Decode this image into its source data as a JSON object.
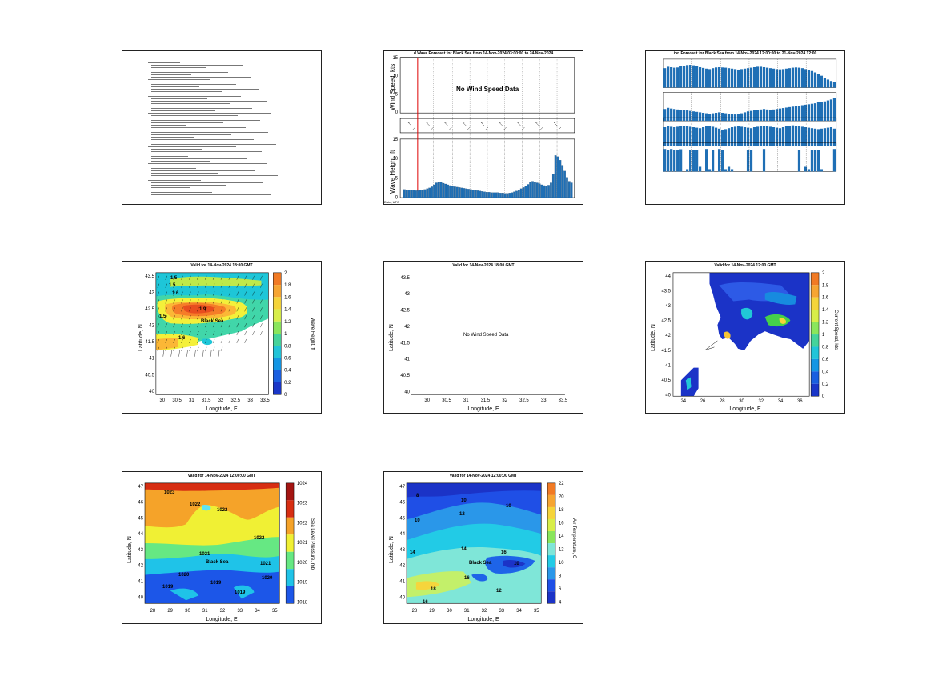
{
  "panels": {
    "text_report": {
      "lines": 56
    },
    "wind_wave": {
      "title": "d Wave Forecast for Black Sea from 14-Nov-2024 03:00:00 to 24-Nov-2024",
      "wind_ylabel": "Wind Speed, kts",
      "wave_ylabel": "Wave Height, ft",
      "nodata": "No Wind Speed Data",
      "wind_ticks": [
        "15",
        "10",
        "5",
        "0"
      ],
      "wave_ticks": [
        "15",
        "10",
        "5",
        "0"
      ],
      "bottom_left": "Date, UTC"
    },
    "multi_forecast": {
      "title": "ion Forecast for Black Sea from 14-Nov-2024 12:00:00 to 21-Nov-2024 12:00"
    },
    "wave_map": {
      "title": "Valid for 14-Nov-2024 18:00 GMT",
      "xlabel": "Longitude, E",
      "ylabel": "Latitude, N",
      "colorbar_label": "Wave Height, ft",
      "sea_label": "Black Sea",
      "xticks": [
        "30",
        "30.5",
        "31",
        "31.5",
        "32",
        "32.5",
        "33",
        "33.5"
      ],
      "yticks": [
        "43.5",
        "43",
        "42.5",
        "42",
        "41.5",
        "41",
        "40.5",
        "40"
      ],
      "cbar_ticks": [
        "2",
        "1.8",
        "1.6",
        "1.4",
        "1.2",
        "1",
        "0.8",
        "0.6",
        "0.4",
        "0.2",
        "0"
      ],
      "contour_labels": [
        "1.5",
        "1.5",
        "1.6",
        "1.9",
        "1.5",
        "1.6"
      ]
    },
    "wind_map": {
      "title": "Valid for 14-Nov-2024 18:00 GMT",
      "xlabel": "Longitude, E",
      "ylabel": "Latitude, N",
      "nodata": "No Wind Speed Data",
      "xticks": [
        "30",
        "30.5",
        "31",
        "31.5",
        "32",
        "32.5",
        "33",
        "33.5"
      ],
      "yticks": [
        "43.5",
        "43",
        "42.5",
        "42",
        "41.5",
        "41",
        "40.5",
        "40"
      ]
    },
    "current_map": {
      "title": "Valid for 14-Nov-2024 12:00 GMT",
      "xlabel": "Longitude, E",
      "ylabel": "Latitude, N",
      "colorbar_label": "Current Speed, kts",
      "xticks": [
        "24",
        "26",
        "28",
        "30",
        "32",
        "34",
        "36"
      ],
      "yticks": [
        "44",
        "43.5",
        "43",
        "42.5",
        "42",
        "41.5",
        "41",
        "40.5",
        "40"
      ],
      "cbar_ticks": [
        "2",
        "1.8",
        "1.6",
        "1.4",
        "1.2",
        "1",
        "0.8",
        "0.6",
        "0.4",
        "0.2",
        "0"
      ]
    },
    "pressure_map": {
      "title": "Valid for 14-Nov-2024 12:00:00 GMT",
      "xlabel": "Longitude, E",
      "ylabel": "Latitude, N",
      "colorbar_label": "Sea Level Pressure, mb",
      "sea_label": "Black Sea",
      "xticks": [
        "28",
        "29",
        "30",
        "31",
        "32",
        "33",
        "34",
        "35"
      ],
      "yticks": [
        "47",
        "46",
        "45",
        "44",
        "43",
        "42",
        "41",
        "40"
      ],
      "cbar_ticks": [
        "1024",
        "1023",
        "1022",
        "1021",
        "1020",
        "1019",
        "1018"
      ],
      "contour_labels": [
        "1023",
        "1022",
        "1022",
        "1022",
        "1021",
        "1021",
        "1020",
        "1020",
        "1019",
        "1019",
        "1019"
      ]
    },
    "temp_map": {
      "title": "Valid for 14-Nov-2024 12:00:00 GMT",
      "xlabel": "Longitude, E",
      "ylabel": "Latitude, N",
      "colorbar_label": "Air Temperature, C",
      "sea_label": "Black Sea",
      "xticks": [
        "28",
        "29",
        "30",
        "31",
        "32",
        "33",
        "34",
        "35"
      ],
      "yticks": [
        "47",
        "46",
        "45",
        "44",
        "43",
        "42",
        "41",
        "40"
      ],
      "cbar_ticks": [
        "22",
        "20",
        "18",
        "16",
        "14",
        "12",
        "10",
        "8",
        "6",
        "4"
      ],
      "contour_labels": [
        "8",
        "10",
        "10",
        "10",
        "12",
        "14",
        "14",
        "16",
        "16",
        "18",
        "10",
        "12",
        "16"
      ]
    }
  },
  "chart_data": [
    {
      "type": "bar",
      "title": "d Wave Forecast for Black Sea from 14-Nov-2024 03:00:00 to 24-Nov-2024",
      "ylabel": "Wave Height, ft",
      "ylim": [
        0,
        15
      ],
      "values": [
        2.1,
        2.0,
        2.0,
        1.9,
        1.9,
        1.8,
        1.8,
        1.9,
        2.0,
        2.1,
        2.3,
        2.5,
        2.8,
        3.3,
        3.8,
        4.0,
        3.9,
        3.7,
        3.5,
        3.3,
        3.1,
        2.9,
        2.8,
        2.7,
        2.6,
        2.5,
        2.4,
        2.3,
        2.2,
        2.1,
        2.0,
        1.9,
        1.8,
        1.7,
        1.6,
        1.5,
        1.4,
        1.4,
        1.3,
        1.3,
        1.3,
        1.3,
        1.2,
        1.2,
        1.1,
        1.1,
        1.2,
        1.3,
        1.5,
        1.7,
        2.0,
        2.3,
        2.6,
        3.0,
        3.4,
        3.9,
        4.2,
        4.0,
        3.8,
        3.6,
        3.3,
        3.1,
        3.0,
        3.2,
        3.8,
        6.0,
        10.8,
        10.5,
        9.6,
        8.3,
        6.8,
        5.2,
        4.2,
        3.8
      ]
    },
    {
      "type": "bar",
      "title": "ion Forecast for Black Sea from 14-Nov-2024 12:00:00 to 21-Nov-2024 12:00",
      "series": [
        {
          "values": [
            0.82,
            0.88,
            0.86,
            0.84,
            0.85,
            0.9,
            0.92,
            0.95,
            0.96,
            0.94,
            0.9,
            0.86,
            0.83,
            0.8,
            0.78,
            0.82,
            0.85,
            0.86,
            0.85,
            0.84,
            0.82,
            0.8,
            0.78,
            0.76,
            0.78,
            0.8,
            0.82,
            0.84,
            0.86,
            0.88,
            0.88,
            0.86,
            0.84,
            0.82,
            0.8,
            0.78,
            0.77,
            0.78,
            0.8,
            0.82,
            0.84,
            0.85,
            0.84,
            0.82,
            0.78,
            0.74,
            0.7,
            0.64,
            0.58,
            0.5,
            0.42,
            0.34,
            0.28,
            0.22
          ]
        },
        {
          "values": [
            0.5,
            0.55,
            0.52,
            0.5,
            0.48,
            0.46,
            0.45,
            0.44,
            0.42,
            0.4,
            0.38,
            0.36,
            0.34,
            0.32,
            0.3,
            0.32,
            0.34,
            0.36,
            0.34,
            0.32,
            0.3,
            0.28,
            0.27,
            0.3,
            0.32,
            0.36,
            0.4,
            0.42,
            0.44,
            0.46,
            0.48,
            0.5,
            0.48,
            0.46,
            0.48,
            0.5,
            0.52,
            0.54,
            0.56,
            0.58,
            0.6,
            0.62,
            0.64,
            0.66,
            0.68,
            0.7,
            0.72,
            0.74,
            0.78,
            0.8,
            0.82,
            0.86,
            0.9,
            0.95
          ]
        },
        {
          "values": [
            0.8,
            0.85,
            0.82,
            0.8,
            0.82,
            0.84,
            0.86,
            0.84,
            0.82,
            0.8,
            0.78,
            0.76,
            0.8,
            0.84,
            0.86,
            0.82,
            0.78,
            0.74,
            0.7,
            0.72,
            0.76,
            0.8,
            0.82,
            0.84,
            0.82,
            0.8,
            0.78,
            0.76,
            0.8,
            0.82,
            0.84,
            0.86,
            0.84,
            0.82,
            0.8,
            0.78,
            0.76,
            0.8,
            0.84,
            0.86,
            0.88,
            0.86,
            0.84,
            0.82,
            0.8,
            0.78,
            0.76,
            0.74,
            0.72,
            0.74,
            0.76,
            0.78,
            0.8,
            0.74
          ]
        },
        {
          "values": [
            0.95,
            0.9,
            0.95,
            0.92,
            0.9,
            0.94,
            0,
            0.1,
            0.92,
            0.9,
            0.9,
            0.2,
            0,
            0.95,
            0.1,
            0.9,
            0.0,
            0.95,
            0.9,
            0.1,
            0.2,
            0.1,
            0.0,
            0.0,
            0.0,
            0.0,
            0.9,
            0.9,
            0.0,
            0.0,
            0.0,
            0.95,
            0.0,
            0.0,
            0.0,
            0.0,
            0.0,
            0.0,
            0.0,
            0.0,
            0.0,
            0.0,
            0.9,
            0.0,
            0.2,
            0.1,
            0.9,
            0.9,
            0.9,
            0.1,
            0.0,
            0.0,
            0.0,
            0.95
          ]
        }
      ]
    },
    {
      "type": "heatmap",
      "title": "Valid for 14-Nov-2024 18:00 GMT",
      "xlabel": "Longitude, E",
      "ylabel": "Latitude, N",
      "xlim": [
        29.6,
        33.6
      ],
      "ylim": [
        39.7,
        43.6
      ],
      "colorbar": "Wave Height, ft"
    },
    {
      "type": "heatmap",
      "title": "Valid for 14-Nov-2024 12:00:00 GMT",
      "xlabel": "Longitude, E",
      "ylabel": "Latitude, N",
      "xlim": [
        27.5,
        35.8
      ],
      "ylim": [
        39.5,
        47.2
      ],
      "colorbar": "Sea Level Pressure, mb",
      "clim": [
        1018,
        1024
      ]
    },
    {
      "type": "heatmap",
      "title": "Valid for 14-Nov-2024 12:00:00 GMT",
      "xlabel": "Longitude, E",
      "ylabel": "Latitude, N",
      "xlim": [
        27.5,
        35.8
      ],
      "ylim": [
        39.5,
        47.2
      ],
      "colorbar": "Air Temperature, C",
      "clim": [
        4,
        22
      ]
    }
  ]
}
